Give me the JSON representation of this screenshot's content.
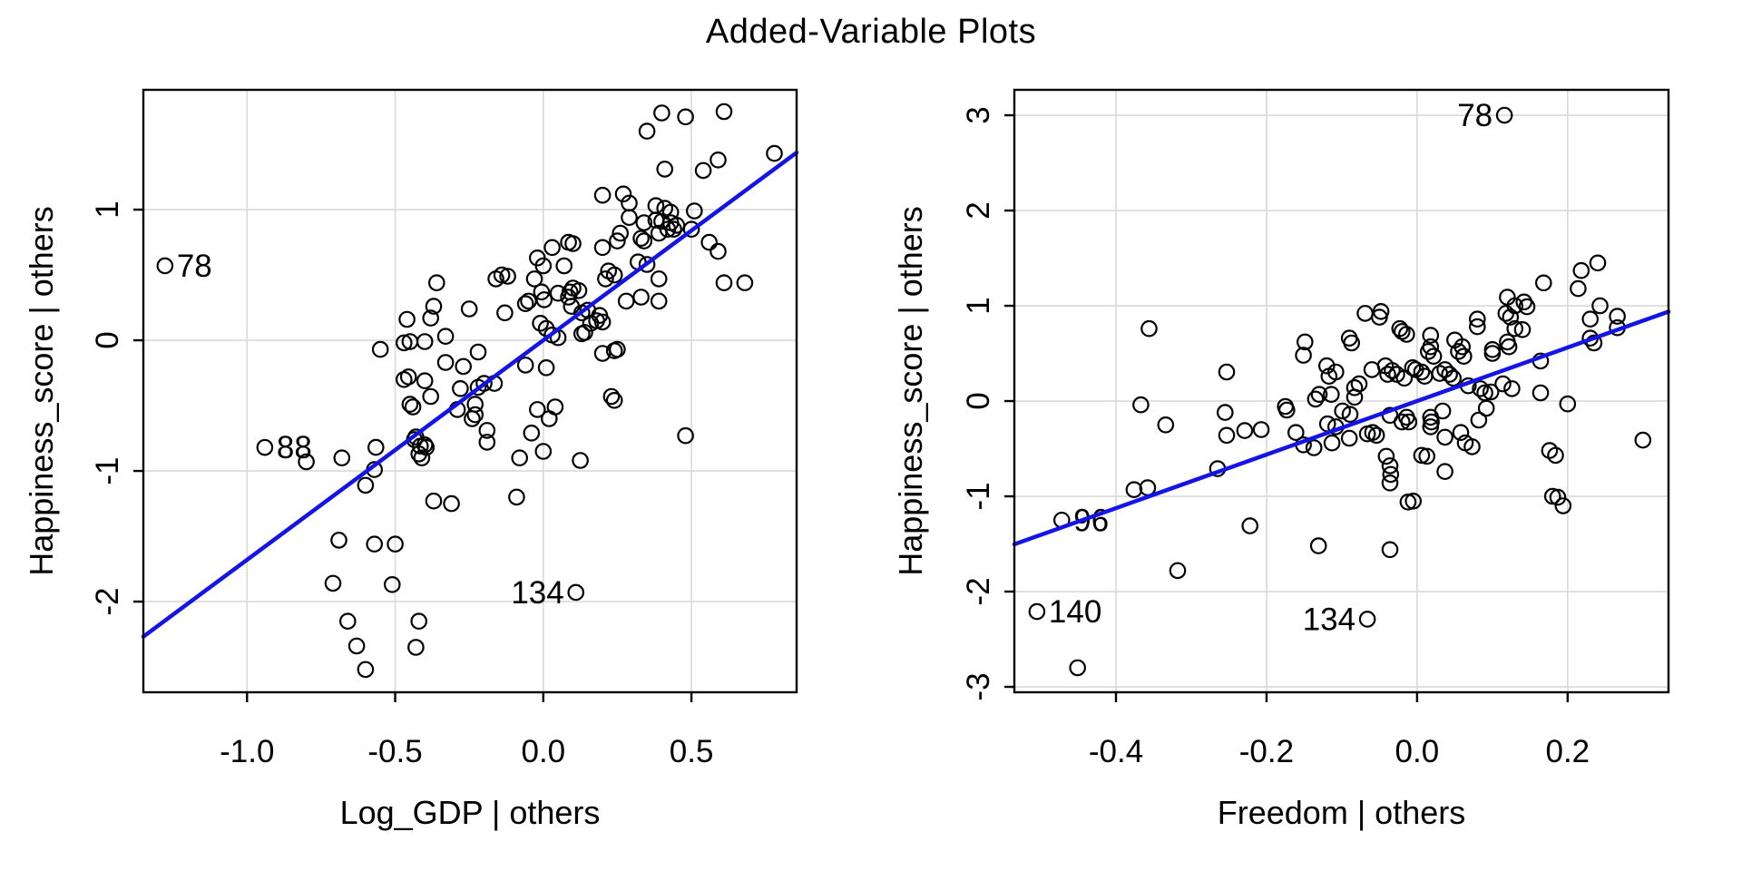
{
  "page": {
    "title": "Added-Variable Plots",
    "background": "#ffffff"
  },
  "style": {
    "point_color": "#000000",
    "regression_color": "#1414e6",
    "grid_color": "#d9d9d9",
    "axis_color": "#000000",
    "text_color": "#000000"
  },
  "chart_data": [
    {
      "type": "scatter",
      "panel": "left",
      "title": "Added-Variable Plots",
      "xlabel": "Log_GDP | others",
      "ylabel": "Happiness_score  | others",
      "xlim": [
        -1.35,
        0.855
      ],
      "ylim": [
        -2.694,
        1.917
      ],
      "xticks": [
        -1.0,
        -0.5,
        0.0,
        0.5
      ],
      "xtick_labels": [
        "-1.0",
        "-0.5",
        "0.0",
        "0.5"
      ],
      "yticks": [
        -2,
        -1,
        0,
        1
      ],
      "ytick_labels": [
        "-2",
        "-1",
        "0",
        "1"
      ],
      "grid": true,
      "legend": null,
      "regression_line": {
        "slope": 1.68,
        "intercept": 0.0
      },
      "labeled_points": [
        {
          "label": "78",
          "x": -1.277,
          "y": 0.57,
          "side": "right"
        },
        {
          "label": "88",
          "x": -0.94,
          "y": -0.82,
          "side": "right"
        },
        {
          "label": "134",
          "x": 0.11,
          "y": -1.93,
          "side": "left"
        }
      ],
      "points": [
        [
          0.4,
          1.74
        ],
        [
          0.48,
          1.71
        ],
        [
          0.61,
          1.75
        ],
        [
          0.35,
          1.6
        ],
        [
          0.78,
          1.43
        ],
        [
          0.59,
          1.38
        ],
        [
          0.54,
          1.3
        ],
        [
          0.41,
          1.31
        ],
        [
          0.2,
          1.11
        ],
        [
          0.27,
          1.12
        ],
        [
          0.29,
          1.05
        ],
        [
          0.51,
          0.99
        ],
        [
          0.38,
          1.03
        ],
        [
          0.41,
          1.01
        ],
        [
          0.43,
          0.98
        ],
        [
          0.29,
          0.94
        ],
        [
          0.34,
          0.9
        ],
        [
          0.38,
          0.92
        ],
        [
          0.4,
          0.91
        ],
        [
          0.43,
          0.9
        ],
        [
          0.45,
          0.88
        ],
        [
          0.26,
          0.82
        ],
        [
          0.33,
          0.78
        ],
        [
          0.34,
          0.76
        ],
        [
          0.39,
          0.82
        ],
        [
          0.42,
          0.85
        ],
        [
          0.44,
          0.85
        ],
        [
          0.5,
          0.85
        ],
        [
          0.56,
          0.75
        ],
        [
          0.59,
          0.68
        ],
        [
          0.32,
          0.6
        ],
        [
          0.35,
          0.58
        ],
        [
          0.22,
          0.53
        ],
        [
          0.24,
          0.5
        ],
        [
          0.21,
          0.47
        ],
        [
          0.39,
          0.47
        ],
        [
          0.61,
          0.44
        ],
        [
          0.68,
          0.44
        ],
        [
          0.28,
          0.3
        ],
        [
          0.33,
          0.33
        ],
        [
          0.39,
          0.3
        ],
        [
          0.19,
          0.19
        ],
        [
          0.2,
          0.14
        ],
        [
          0.25,
          -0.07
        ],
        [
          0.24,
          -0.46
        ],
        [
          0.48,
          -0.73
        ],
        [
          0.2,
          0.71
        ],
        [
          0.25,
          0.76
        ],
        [
          0.1,
          0.74
        ],
        [
          0.03,
          0.71
        ],
        [
          -0.02,
          0.63
        ],
        [
          0.085,
          0.75
        ],
        [
          0.07,
          0.57
        ],
        [
          0.0,
          0.57
        ],
        [
          -0.16,
          0.47
        ],
        [
          -0.12,
          0.49
        ],
        [
          -0.03,
          0.47
        ],
        [
          0.09,
          0.37
        ],
        [
          0.1,
          0.4
        ],
        [
          0.12,
          0.38
        ],
        [
          0.085,
          0.33
        ],
        [
          0.095,
          0.26
        ],
        [
          0.05,
          0.36
        ],
        [
          -0.006,
          0.37
        ],
        [
          0.003,
          0.31
        ],
        [
          -0.06,
          0.28
        ],
        [
          -0.05,
          0.3
        ],
        [
          0.13,
          0.21
        ],
        [
          0.15,
          0.23
        ],
        [
          0.16,
          0.13
        ],
        [
          0.18,
          0.15
        ],
        [
          0.14,
          0.06
        ],
        [
          0.13,
          0.05
        ],
        [
          -0.01,
          0.13
        ],
        [
          0.01,
          0.09
        ],
        [
          0.03,
          0.04
        ],
        [
          0.05,
          0.02
        ],
        [
          -0.36,
          0.44
        ],
        [
          -0.14,
          0.5
        ],
        [
          -0.25,
          0.24
        ],
        [
          -0.13,
          0.21
        ],
        [
          -0.38,
          0.17
        ],
        [
          -0.37,
          0.26
        ],
        [
          -0.46,
          0.16
        ],
        [
          -0.47,
          -0.02
        ],
        [
          -0.45,
          -0.01
        ],
        [
          -0.4,
          -0.01
        ],
        [
          -0.33,
          0.03
        ],
        [
          -0.55,
          -0.07
        ],
        [
          -0.22,
          -0.09
        ],
        [
          0.2,
          -0.1
        ],
        [
          0.24,
          -0.08
        ],
        [
          -0.33,
          -0.17
        ],
        [
          -0.27,
          -0.2
        ],
        [
          -0.06,
          -0.19
        ],
        [
          0.01,
          -0.21
        ],
        [
          -0.47,
          -0.3
        ],
        [
          -0.455,
          -0.28
        ],
        [
          -0.4,
          -0.31
        ],
        [
          -0.2,
          -0.33
        ],
        [
          -0.165,
          -0.33
        ],
        [
          -0.28,
          -0.37
        ],
        [
          -0.22,
          -0.36
        ],
        [
          -0.38,
          -0.43
        ],
        [
          0.23,
          -0.43
        ],
        [
          -0.45,
          -0.49
        ],
        [
          -0.44,
          -0.51
        ],
        [
          -0.29,
          -0.53
        ],
        [
          -0.23,
          -0.49
        ],
        [
          -0.23,
          -0.57
        ],
        [
          -0.24,
          -0.6
        ],
        [
          -0.02,
          -0.53
        ],
        [
          0.04,
          -0.51
        ],
        [
          0.02,
          -0.6
        ],
        [
          -0.19,
          -0.69
        ],
        [
          -0.19,
          -0.78
        ],
        [
          -0.04,
          -0.71
        ],
        [
          -0.435,
          -0.76
        ],
        [
          -0.415,
          -0.81
        ],
        [
          -0.395,
          -0.82
        ],
        [
          -0.41,
          -0.9
        ],
        [
          -0.08,
          -0.9
        ],
        [
          0.0,
          -0.85
        ],
        [
          0.125,
          -0.92
        ],
        [
          -0.8,
          -0.93
        ],
        [
          -0.68,
          -0.9
        ],
        [
          -0.57,
          -0.99
        ],
        [
          -0.565,
          -0.82
        ],
        [
          -0.6,
          -1.11
        ],
        [
          -0.43,
          -0.74
        ],
        [
          -0.4,
          -0.8
        ],
        [
          -0.42,
          -0.87
        ],
        [
          -0.37,
          -1.23
        ],
        [
          -0.31,
          -1.25
        ],
        [
          -0.09,
          -1.2
        ],
        [
          -0.69,
          -1.53
        ],
        [
          -0.57,
          -1.56
        ],
        [
          -0.5,
          -1.56
        ],
        [
          -0.71,
          -1.86
        ],
        [
          -0.51,
          -1.87
        ],
        [
          -0.66,
          -2.15
        ],
        [
          -0.42,
          -2.15
        ],
        [
          -0.63,
          -2.34
        ],
        [
          -0.43,
          -2.35
        ],
        [
          -0.6,
          -2.52
        ]
      ]
    },
    {
      "type": "scatter",
      "panel": "right",
      "title": "Added-Variable Plots",
      "xlabel": "Freedom | others",
      "ylabel": "Happiness_score  | others",
      "xlim": [
        -0.535,
        0.334
      ],
      "ylim": [
        -3.057,
        3.267
      ],
      "xticks": [
        -0.4,
        -0.2,
        0.0,
        0.2
      ],
      "xtick_labels": [
        "-0.4",
        "-0.2",
        "0.0",
        "0.2"
      ],
      "yticks": [
        -3,
        -2,
        -1,
        0,
        1,
        2,
        3
      ],
      "ytick_labels": [
        "-3",
        "-2",
        "-1",
        "0",
        "1",
        "2",
        "3"
      ],
      "grid": true,
      "legend": null,
      "regression_line": {
        "slope": 2.81,
        "intercept": 0.0
      },
      "labeled_points": [
        {
          "label": "78",
          "x": 0.116,
          "y": 3.0,
          "side": "left"
        },
        {
          "label": "96",
          "x": -0.472,
          "y": -1.25,
          "side": "right"
        },
        {
          "label": "140",
          "x": -0.505,
          "y": -2.21,
          "side": "right"
        },
        {
          "label": "134",
          "x": -0.066,
          "y": -2.29,
          "side": "left"
        }
      ],
      "points": [
        [
          0.24,
          1.45
        ],
        [
          0.218,
          1.37
        ],
        [
          0.214,
          1.18
        ],
        [
          0.168,
          1.24
        ],
        [
          0.243,
          1.0
        ],
        [
          0.266,
          0.89
        ],
        [
          0.12,
          1.09
        ],
        [
          0.13,
          1.0
        ],
        [
          0.142,
          1.04
        ],
        [
          0.146,
          0.99
        ],
        [
          0.118,
          0.92
        ],
        [
          0.124,
          0.88
        ],
        [
          0.08,
          0.86
        ],
        [
          -0.048,
          0.94
        ],
        [
          -0.09,
          0.66
        ],
        [
          -0.023,
          0.76
        ],
        [
          -0.014,
          0.7
        ],
        [
          0.018,
          0.69
        ],
        [
          0.018,
          0.57
        ],
        [
          0.022,
          0.47
        ],
        [
          0.23,
          0.66
        ],
        [
          0.235,
          0.61
        ],
        [
          0.05,
          0.64
        ],
        [
          0.06,
          0.57
        ],
        [
          0.055,
          0.52
        ],
        [
          0.062,
          0.47
        ],
        [
          0.1,
          0.54
        ],
        [
          0.1,
          0.5
        ],
        [
          0.12,
          0.62
        ],
        [
          0.122,
          0.57
        ],
        [
          0.164,
          0.42
        ],
        [
          -0.087,
          0.61
        ],
        [
          -0.149,
          0.62
        ],
        [
          -0.12,
          0.37
        ],
        [
          -0.108,
          0.305
        ],
        [
          -0.117,
          0.26
        ],
        [
          -0.06,
          0.33
        ],
        [
          -0.042,
          0.37
        ],
        [
          -0.033,
          0.32
        ],
        [
          -0.039,
          0.28
        ],
        [
          -0.027,
          0.28
        ],
        [
          -0.017,
          0.24
        ],
        [
          -0.006,
          0.35
        ],
        [
          -0.002,
          0.33
        ],
        [
          0.006,
          0.305
        ],
        [
          0.01,
          0.26
        ],
        [
          0.03,
          0.29
        ],
        [
          0.037,
          0.33
        ],
        [
          0.043,
          0.28
        ],
        [
          0.048,
          0.24
        ],
        [
          0.068,
          0.16
        ],
        [
          0.084,
          0.13
        ],
        [
          0.09,
          0.086
        ],
        [
          0.098,
          0.095
        ],
        [
          0.114,
          0.18
        ],
        [
          0.126,
          0.13
        ],
        [
          0.164,
          0.086
        ],
        [
          0.2,
          -0.03
        ],
        [
          -0.083,
          0.14
        ],
        [
          -0.077,
          0.18
        ],
        [
          -0.13,
          0.07
        ],
        [
          -0.114,
          0.07
        ],
        [
          -0.135,
          0.02
        ],
        [
          -0.083,
          0.04
        ],
        [
          -0.05,
          0.88
        ],
        [
          0.08,
          0.78
        ],
        [
          0.13,
          0.76
        ],
        [
          0.14,
          0.75
        ],
        [
          0.23,
          0.86
        ],
        [
          0.266,
          0.77
        ],
        [
          -0.02,
          0.73
        ],
        [
          0.015,
          0.52
        ],
        [
          -0.069,
          0.92
        ],
        [
          -0.356,
          0.76
        ],
        [
          -0.253,
          0.305
        ],
        [
          -0.151,
          0.48
        ],
        [
          -0.367,
          -0.04
        ],
        [
          -0.334,
          -0.25
        ],
        [
          -0.255,
          -0.12
        ],
        [
          -0.253,
          -0.36
        ],
        [
          -0.229,
          -0.31
        ],
        [
          -0.207,
          -0.3
        ],
        [
          -0.175,
          -0.057
        ],
        [
          -0.173,
          -0.095
        ],
        [
          -0.161,
          -0.33
        ],
        [
          -0.151,
          -0.46
        ],
        [
          -0.137,
          -0.49
        ],
        [
          -0.113,
          -0.44
        ],
        [
          -0.265,
          -0.71
        ],
        [
          -0.376,
          -0.93
        ],
        [
          -0.358,
          -0.91
        ],
        [
          -0.222,
          -1.31
        ],
        [
          -0.131,
          -1.52
        ],
        [
          -0.036,
          -1.56
        ],
        [
          -0.318,
          -1.78
        ],
        [
          -0.099,
          -0.105
        ],
        [
          -0.089,
          -0.14
        ],
        [
          -0.119,
          -0.24
        ],
        [
          -0.108,
          -0.27
        ],
        [
          -0.09,
          -0.39
        ],
        [
          -0.066,
          -0.345
        ],
        [
          -0.059,
          -0.33
        ],
        [
          -0.054,
          -0.36
        ],
        [
          -0.036,
          -0.15
        ],
        [
          -0.014,
          -0.17
        ],
        [
          -0.02,
          -0.22
        ],
        [
          -0.011,
          -0.22
        ],
        [
          0.018,
          -0.17
        ],
        [
          0.019,
          -0.22
        ],
        [
          0.018,
          -0.27
        ],
        [
          0.034,
          -0.105
        ],
        [
          0.037,
          -0.38
        ],
        [
          0.058,
          -0.33
        ],
        [
          0.064,
          -0.44
        ],
        [
          0.073,
          -0.48
        ],
        [
          0.082,
          -0.2
        ],
        [
          0.092,
          -0.076
        ],
        [
          0.037,
          -0.74
        ],
        [
          0.006,
          -0.57
        ],
        [
          0.013,
          -0.58
        ],
        [
          -0.041,
          -0.58
        ],
        [
          -0.036,
          -0.68
        ],
        [
          -0.035,
          -0.77
        ],
        [
          -0.036,
          -0.86
        ],
        [
          -0.012,
          -1.06
        ],
        [
          -0.005,
          -1.05
        ],
        [
          0.176,
          -0.52
        ],
        [
          0.184,
          -0.57
        ],
        [
          0.18,
          -1.0
        ],
        [
          0.187,
          -1.01
        ],
        [
          0.194,
          -1.1
        ],
        [
          0.3,
          -0.41
        ],
        [
          -0.451,
          -2.8
        ]
      ]
    }
  ]
}
